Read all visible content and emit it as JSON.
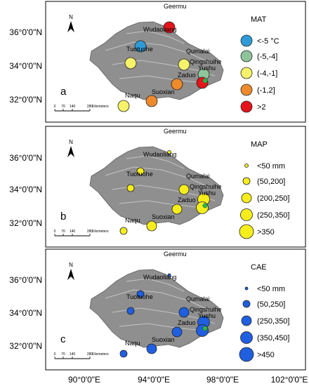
{
  "colors": {
    "plateau_fill": "#8f8f8f",
    "plateau_stroke": "#5e5e5e",
    "yushu_marker": "#2db34a"
  },
  "lat_labels": [
    "36°0'0\"N",
    "34°0'0\"N",
    "32°0'0\"N"
  ],
  "lon_labels": [
    "90°0'0\"E",
    "94°0'0\"E",
    "98°0'0\"E",
    "102°0'0\"E"
  ],
  "north_arrow": {
    "letter": "N"
  },
  "scale_bar": {
    "ticks": [
      "0",
      "70",
      "140",
      "280"
    ],
    "unit": "Kilometers"
  },
  "stations": [
    {
      "name": "Geermu"
    },
    {
      "name": "Wudaoliang"
    },
    {
      "name": "Tuotuohe"
    },
    {
      "name": "Qumalai"
    },
    {
      "name": "Qingshuihe"
    },
    {
      "name": "Zaduo"
    },
    {
      "name": "Yushu"
    },
    {
      "name": "Naqu"
    },
    {
      "name": "Suoxian"
    }
  ],
  "panels": [
    {
      "letter": "a",
      "legend_title": "MAT",
      "legend_unit": "°C",
      "legend": [
        {
          "label": "<-5",
          "color": "#2e9bd6"
        },
        {
          "label": "(-5,-4]",
          "color": "#8fc49a"
        },
        {
          "label": "(-4,-1]",
          "color": "#f6f26a"
        },
        {
          "label": "(-1,2]",
          "color": "#ee8a2c"
        },
        {
          "label": ">2",
          "color": "#e5141b"
        }
      ]
    },
    {
      "letter": "b",
      "legend_title": "MAP",
      "legend_unit": "mm",
      "legend": [
        {
          "label": "<50"
        },
        {
          "label": "(50,200]"
        },
        {
          "label": "(200,250]"
        },
        {
          "label": "(250,350]"
        },
        {
          "label": ">350"
        }
      ],
      "fill_color": "#f6ee1b"
    },
    {
      "letter": "c",
      "legend_title": "CAE",
      "legend_unit": "mm",
      "legend": [
        {
          "label": "<50"
        },
        {
          "label": "(50,250]"
        },
        {
          "label": "(250,350]"
        },
        {
          "label": "(350,450]"
        },
        {
          "label": ">450"
        }
      ],
      "fill_color": "#1f5fe0"
    }
  ]
}
